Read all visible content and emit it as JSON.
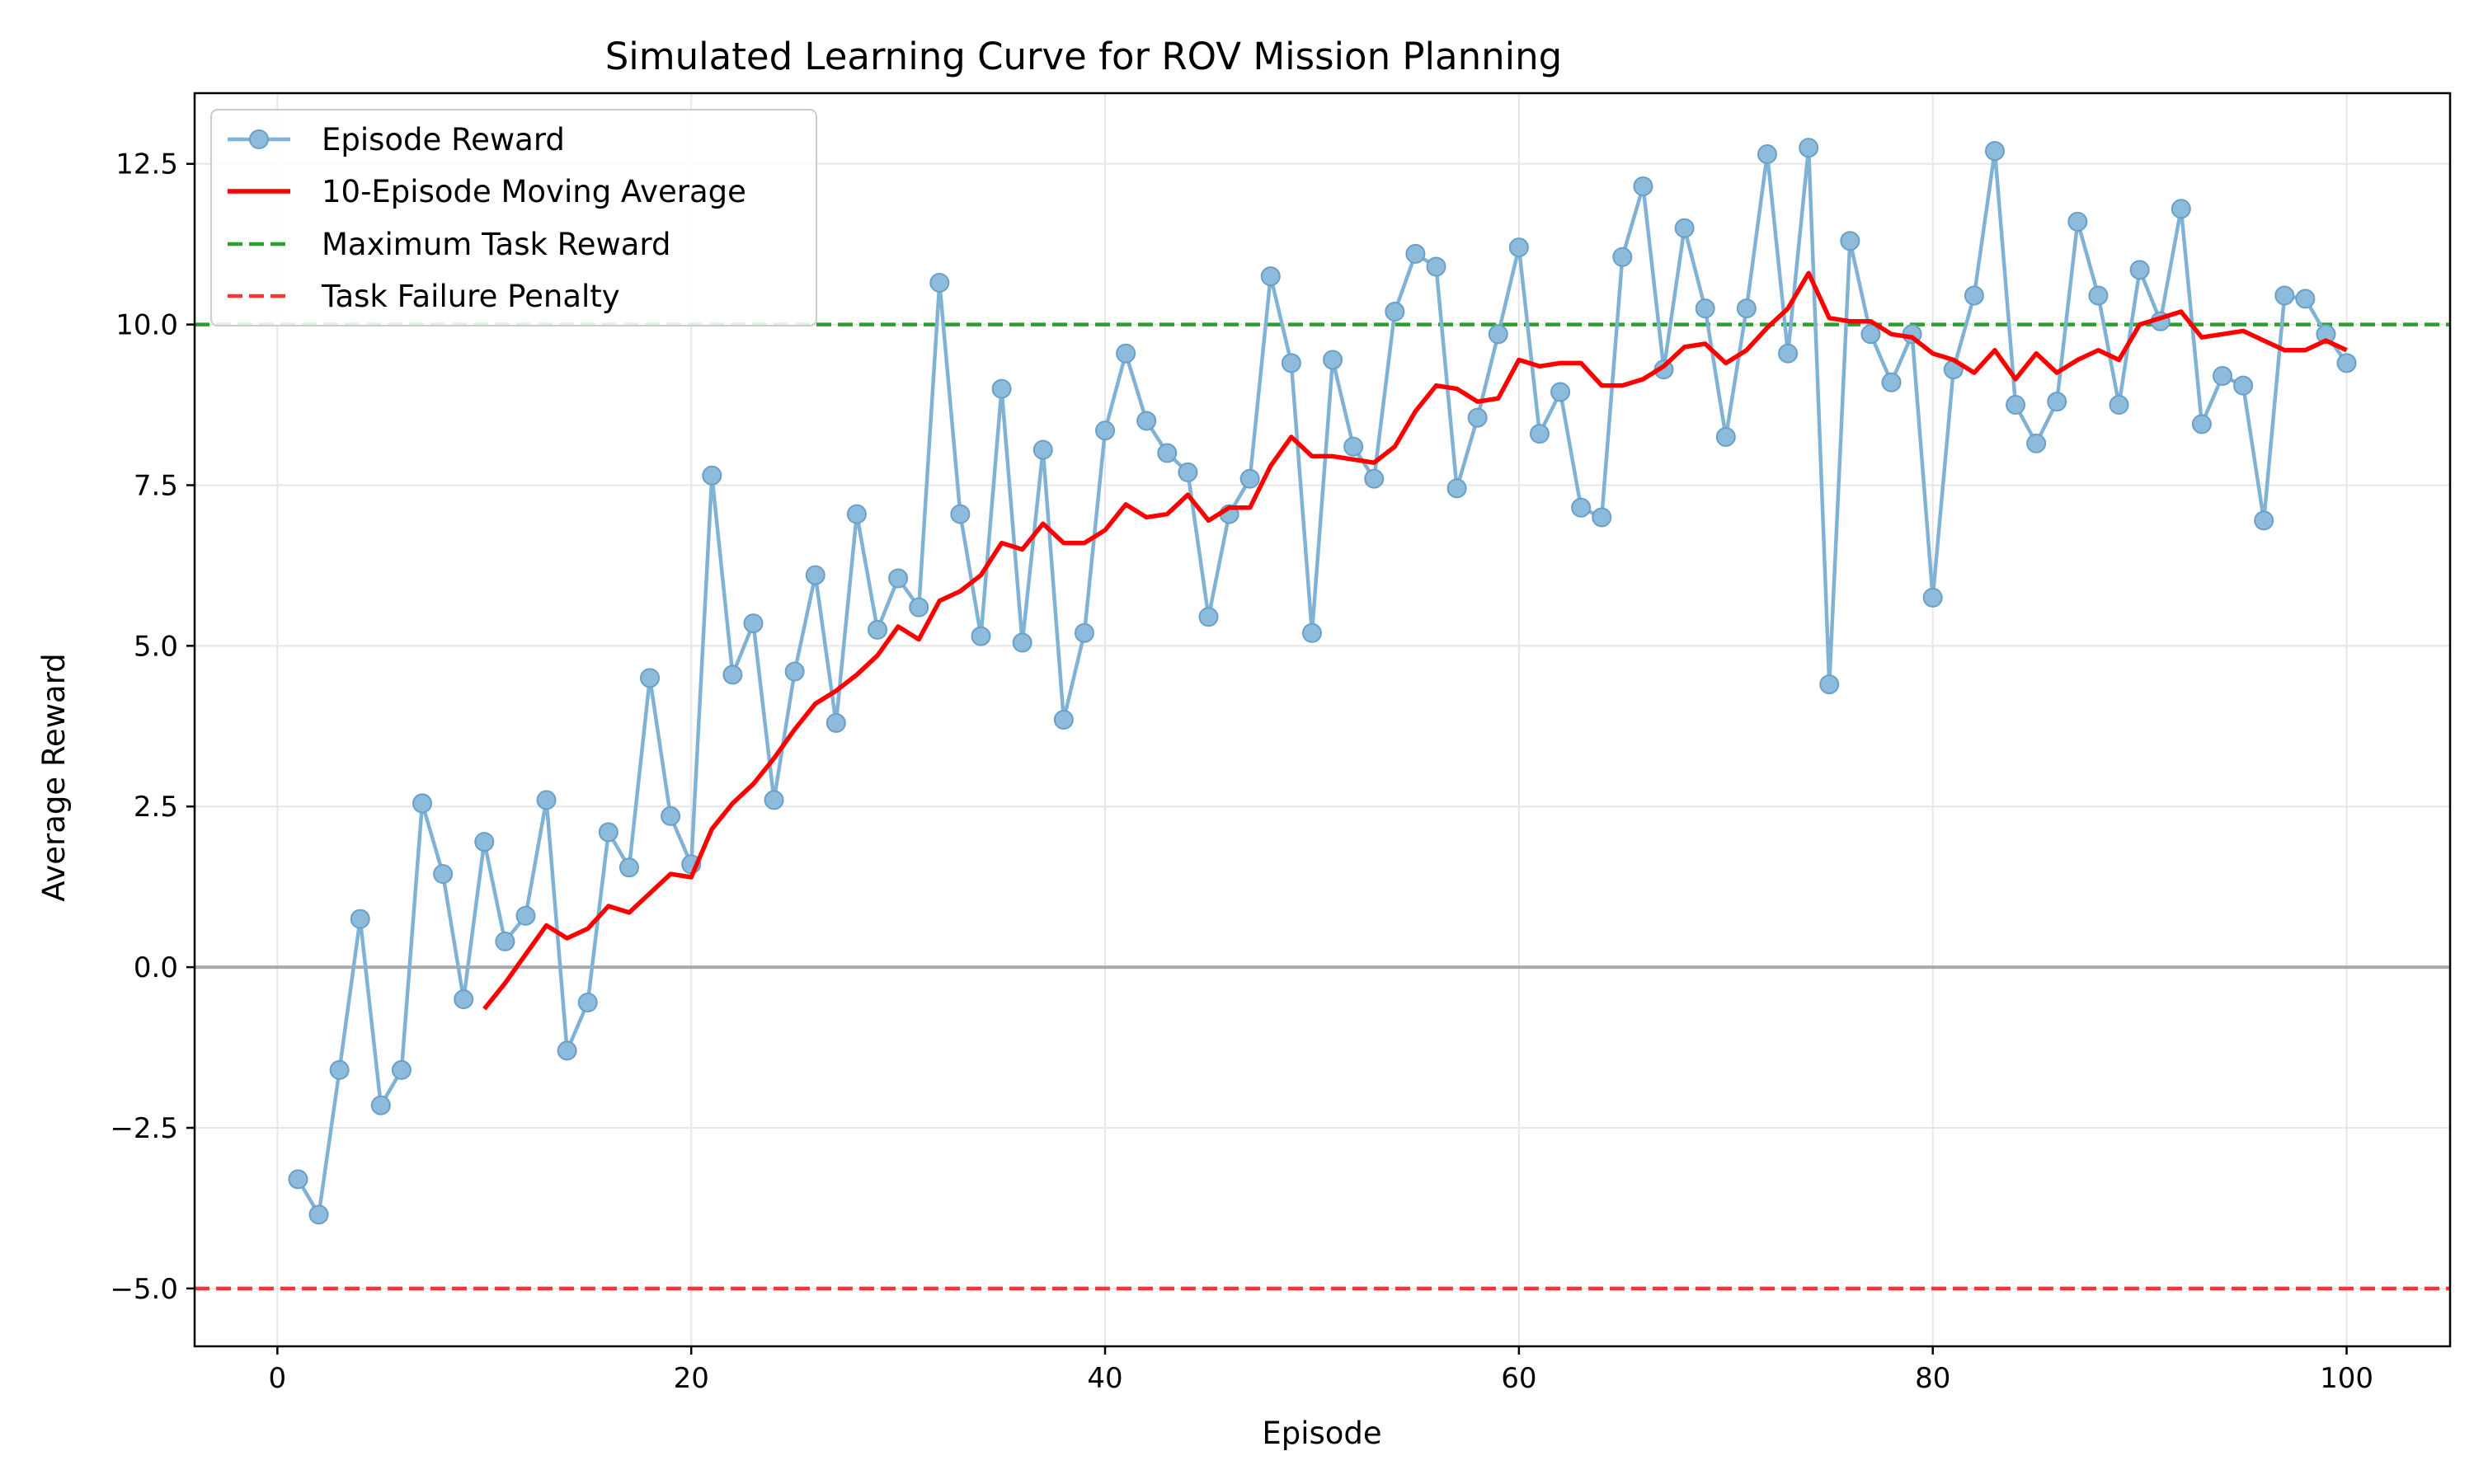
{
  "chart_data": {
    "type": "line",
    "title": "Simulated Learning Curve for ROV Mission Planning",
    "xlabel": "Episode",
    "ylabel": "Average Reward",
    "xlim": [
      -4,
      105
    ],
    "ylim": [
      -5.9,
      13.6
    ],
    "xticks": [
      0,
      20,
      40,
      60,
      80,
      100
    ],
    "xtick_labels": [
      "0",
      "20",
      "40",
      "60",
      "80",
      "100"
    ],
    "yticks": [
      -5.0,
      -2.5,
      0.0,
      2.5,
      5.0,
      7.5,
      10.0,
      12.5
    ],
    "ytick_labels": [
      "−5.0",
      "−2.5",
      "0.0",
      "2.5",
      "5.0",
      "7.5",
      "10.0",
      "12.5"
    ],
    "grid": true,
    "legend_position": "top-left",
    "series": [
      {
        "name": "Episode Reward",
        "style": "line-with-markers",
        "color": "#7fb2d5",
        "x": [
          1,
          2,
          3,
          4,
          5,
          6,
          7,
          8,
          9,
          10,
          11,
          12,
          13,
          14,
          15,
          16,
          17,
          18,
          19,
          20,
          21,
          22,
          23,
          24,
          25,
          26,
          27,
          28,
          29,
          30,
          31,
          32,
          33,
          34,
          35,
          36,
          37,
          38,
          39,
          40,
          41,
          42,
          43,
          44,
          45,
          46,
          47,
          48,
          49,
          50,
          51,
          52,
          53,
          54,
          55,
          56,
          57,
          58,
          59,
          60,
          61,
          62,
          63,
          64,
          65,
          66,
          67,
          68,
          69,
          70,
          71,
          72,
          73,
          74,
          75,
          76,
          77,
          78,
          79,
          80,
          81,
          82,
          83,
          84,
          85,
          86,
          87,
          88,
          89,
          90,
          91,
          92,
          93,
          94,
          95,
          96,
          97,
          98,
          99,
          100
        ],
        "values": [
          -3.3,
          -3.85,
          -1.6,
          0.75,
          -2.15,
          -1.6,
          2.55,
          1.45,
          -0.5,
          1.95,
          0.4,
          0.8,
          2.6,
          -1.3,
          -0.55,
          2.1,
          1.55,
          4.5,
          2.35,
          1.6,
          7.65,
          4.55,
          5.35,
          2.6,
          4.6,
          6.1,
          3.8,
          7.05,
          5.25,
          6.05,
          5.6,
          10.65,
          7.05,
          5.15,
          9.0,
          5.05,
          8.05,
          3.85,
          5.2,
          8.35,
          9.55,
          8.5,
          8.0,
          7.7,
          5.45,
          7.05,
          7.6,
          10.75,
          9.4,
          5.2,
          9.45,
          8.1,
          7.6,
          10.2,
          11.1,
          10.9,
          7.45,
          8.55,
          9.85,
          11.2,
          8.3,
          8.95,
          7.15,
          7.0,
          11.05,
          12.15,
          9.3,
          11.5,
          10.25,
          8.25,
          10.25,
          12.65,
          9.55,
          12.75,
          4.4,
          11.3,
          9.85,
          9.1,
          9.85,
          5.75,
          9.3,
          10.45,
          12.7,
          8.75,
          8.15,
          8.8,
          11.6,
          10.45,
          8.75,
          10.85,
          10.05,
          11.8,
          8.45,
          9.2,
          9.05,
          6.95,
          10.45,
          10.4,
          9.85,
          9.4
        ]
      },
      {
        "name": "10-Episode Moving Average",
        "style": "line",
        "color": "#ff0000",
        "x": [
          10,
          11,
          12,
          13,
          14,
          15,
          16,
          17,
          18,
          19,
          20,
          21,
          22,
          23,
          24,
          25,
          26,
          27,
          28,
          29,
          30,
          31,
          32,
          33,
          34,
          35,
          36,
          37,
          38,
          39,
          40,
          41,
          42,
          43,
          44,
          45,
          46,
          47,
          48,
          49,
          50,
          51,
          52,
          53,
          54,
          55,
          56,
          57,
          58,
          59,
          60,
          61,
          62,
          63,
          64,
          65,
          66,
          67,
          68,
          69,
          70,
          71,
          72,
          73,
          74,
          75,
          76,
          77,
          78,
          79,
          80,
          81,
          82,
          83,
          84,
          85,
          86,
          87,
          88,
          89,
          90,
          91,
          92,
          93,
          94,
          95,
          96,
          97,
          98,
          99,
          100
        ],
        "values": [
          -0.65,
          -0.25,
          0.2,
          0.65,
          0.45,
          0.6,
          0.95,
          0.85,
          1.15,
          1.45,
          1.4,
          2.15,
          2.55,
          2.85,
          3.25,
          3.7,
          4.1,
          4.3,
          4.55,
          4.85,
          5.3,
          5.1,
          5.7,
          5.85,
          6.1,
          6.6,
          6.5,
          6.9,
          6.6,
          6.6,
          6.8,
          7.2,
          7.0,
          7.05,
          7.35,
          6.95,
          7.15,
          7.15,
          7.8,
          8.25,
          7.95,
          7.95,
          7.9,
          7.85,
          8.1,
          8.65,
          9.05,
          9.0,
          8.8,
          8.85,
          9.45,
          9.35,
          9.4,
          9.4,
          9.05,
          9.05,
          9.15,
          9.35,
          9.65,
          9.7,
          9.4,
          9.6,
          9.95,
          10.25,
          10.8,
          10.1,
          10.05,
          10.05,
          9.85,
          9.8,
          9.55,
          9.45,
          9.25,
          9.6,
          9.15,
          9.55,
          9.25,
          9.45,
          9.6,
          9.45,
          10.0,
          10.1,
          10.2,
          9.8,
          9.85,
          9.9,
          9.75,
          9.6,
          9.6,
          9.75,
          9.6
        ]
      },
      {
        "name": "Maximum Task Reward",
        "style": "hline-dashed",
        "color": "#2ca02c",
        "y": 10.0
      },
      {
        "name": "Task Failure Penalty",
        "style": "hline-dashed",
        "color": "#ff3333",
        "y": -5.0
      }
    ],
    "zero_line": 0.0
  }
}
